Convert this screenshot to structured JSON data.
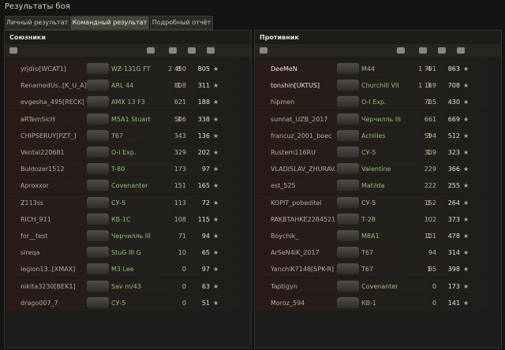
{
  "window": {
    "title": "Результаты боя"
  },
  "tabs": [
    "Личный результат",
    "Командный результат",
    "Подробный отчёт"
  ],
  "allies": {
    "title": "Союзники",
    "rows": [
      {
        "player": "yrjdro[WCAT1]",
        "tank": "WZ-131G FT",
        "damage": "2 450",
        "frags": "8",
        "xp": "805"
      },
      {
        "player": "RenamedUs..[K_U_A]",
        "tank": "ARL 44",
        "damage": "808",
        "frags": "1",
        "xp": "311"
      },
      {
        "player": "evgesha_495[RECK]",
        "tank": "AMX 13 F3",
        "damage": "621",
        "xp": "188"
      },
      {
        "player": "aRTemSicH",
        "tank": "M5A1 Stuart",
        "damage": "506",
        "frags": "3",
        "xp": "338"
      },
      {
        "player": "CHIPSERUY[PZT_]",
        "tank": "T67",
        "damage": "343",
        "xp": "136"
      },
      {
        "player": "Vental220681",
        "tank": "О-I Exp.",
        "damage": "329",
        "xp": "202"
      },
      {
        "player": "Buldozer1512",
        "tank": "T-80",
        "damage": "173",
        "xp": "97"
      },
      {
        "player": "Aproxxor",
        "tank": "Covenanter",
        "damage": "151",
        "xp": "165"
      },
      {
        "player": "Z113ss",
        "tank": "СУ-5",
        "damage": "113",
        "xp": "72"
      },
      {
        "player": "RICH_911",
        "tank": "КВ-1С",
        "damage": "108",
        "xp": "115"
      },
      {
        "player": "for__test",
        "tank": "Черчилль III",
        "damage": "71",
        "xp": "94"
      },
      {
        "player": "sireqa",
        "tank": "StuG III G",
        "damage": "10",
        "xp": "65"
      },
      {
        "player": "legion13..[XMAX]",
        "tank": "M3 Lee",
        "damage": "0",
        "xp": "97"
      },
      {
        "player": "nikita3230[BEK1]",
        "tank": "Sav m/43",
        "damage": "0",
        "xp": "63"
      },
      {
        "player": "drago007_7",
        "tank": "СУ-5",
        "damage": "0",
        "xp": "51"
      }
    ]
  },
  "enemies": {
    "title": "Противник",
    "rows": [
      {
        "player": "DeeMeN",
        "tank": "M44",
        "damage": "1 791",
        "frags": "4",
        "xp": "863"
      },
      {
        "player": "tonshin[UKTUS]",
        "tank": "Churchill VII",
        "damage": "1 169",
        "frags": "3",
        "xp": "708"
      },
      {
        "player": "hipmen",
        "tank": "О-I Exp.",
        "damage": "785",
        "frags": "1",
        "xp": "430"
      },
      {
        "player": "sunnat_UZB_2017",
        "tank": "Черчилль III",
        "damage": "661",
        "xp": "669"
      },
      {
        "player": "francuz_2001_boec",
        "tank": "Achilles",
        "damage": "594",
        "frags": "3",
        "xp": "512"
      },
      {
        "player": "Rustem116RU",
        "tank": "СУ-5",
        "damage": "309",
        "frags": "1",
        "xp": "323"
      },
      {
        "player": "VLADISLAV_ZHURAV...",
        "tank": "Valentine",
        "damage": "229",
        "xp": "366"
      },
      {
        "player": "est_525",
        "tank": "Matilda",
        "damage": "222",
        "xp": "255"
      },
      {
        "player": "KOPIT_pobeditel",
        "tank": "СУ-5",
        "damage": "152",
        "frags": "1",
        "xp": "264"
      },
      {
        "player": "PAKBTAHKE2284521",
        "tank": "Т-28",
        "damage": "102",
        "xp": "373"
      },
      {
        "player": "Boychik_",
        "tank": "M8A1",
        "damage": "101",
        "frags": "1",
        "xp": "478"
      },
      {
        "player": "ArSeN4iK_2017",
        "tank": "T67",
        "damage": "94",
        "xp": "314"
      },
      {
        "player": "YanchiK7148[SPK-R]",
        "tank": "T67",
        "damage": "85",
        "frags": "1",
        "xp": "398"
      },
      {
        "player": "Taptigyn",
        "tank": "Covenanter",
        "damage": "0",
        "xp": "173"
      },
      {
        "player": "Moroz_594",
        "tank": "КВ-1",
        "damage": "0",
        "xp": "141"
      }
    ]
  }
}
